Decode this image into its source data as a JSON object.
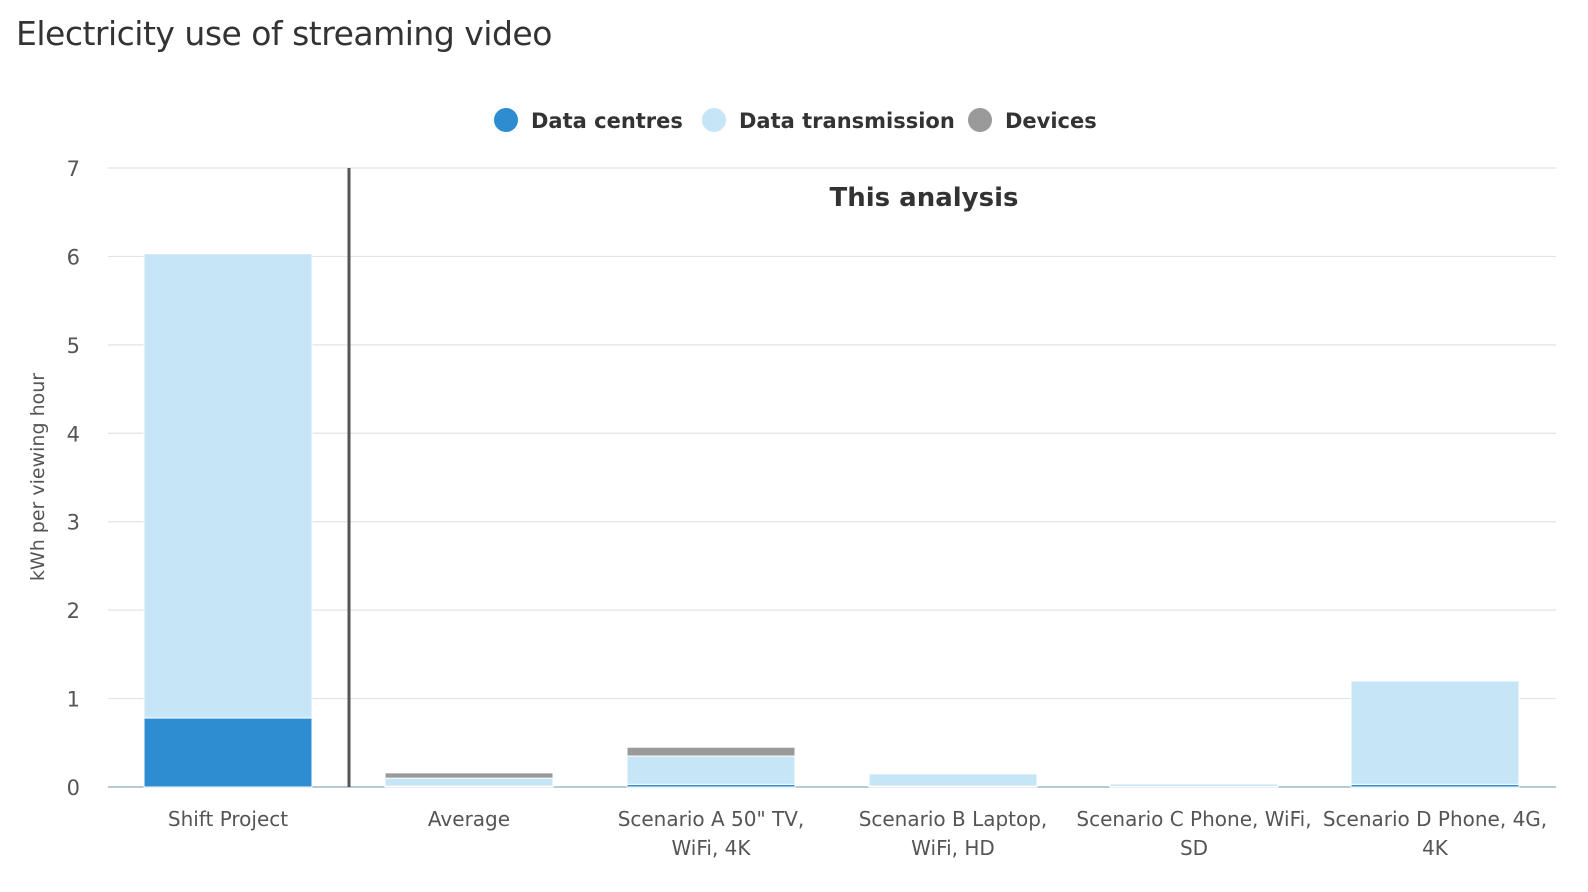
{
  "title": "Electricity use of streaming video",
  "chart_data": {
    "type": "bar",
    "stacked": true,
    "title": "Electricity use of streaming video",
    "xlabel": "",
    "ylabel": "kWh per viewing hour",
    "ylim": [
      0,
      7
    ],
    "yticks": [
      0,
      1,
      2,
      3,
      4,
      5,
      6,
      7
    ],
    "grid": true,
    "legend_position": "top-center",
    "categories": [
      [
        "Shift Project"
      ],
      [
        "Average"
      ],
      [
        "Scenario A 50\" TV,",
        "WiFi, 4K"
      ],
      [
        "Scenario B Laptop,",
        "WiFi, HD"
      ],
      [
        "Scenario C Phone, WiFi,",
        "SD"
      ],
      [
        "Scenario D Phone, 4G,",
        "4K"
      ]
    ],
    "series": [
      {
        "name": "Data centres",
        "color": "#2e8dd0",
        "values": [
          0.78,
          0.01,
          0.03,
          0.01,
          0.005,
          0.03
        ]
      },
      {
        "name": "Data transmission",
        "color": "#c6e5f7",
        "values": [
          5.25,
          0.09,
          0.32,
          0.14,
          0.03,
          1.17
        ]
      },
      {
        "name": "Devices",
        "color": "#9a9a9a",
        "values": [
          0.0,
          0.06,
          0.1,
          0.005,
          0.002,
          0.005
        ]
      }
    ],
    "annotation": {
      "text": "This analysis"
    }
  }
}
